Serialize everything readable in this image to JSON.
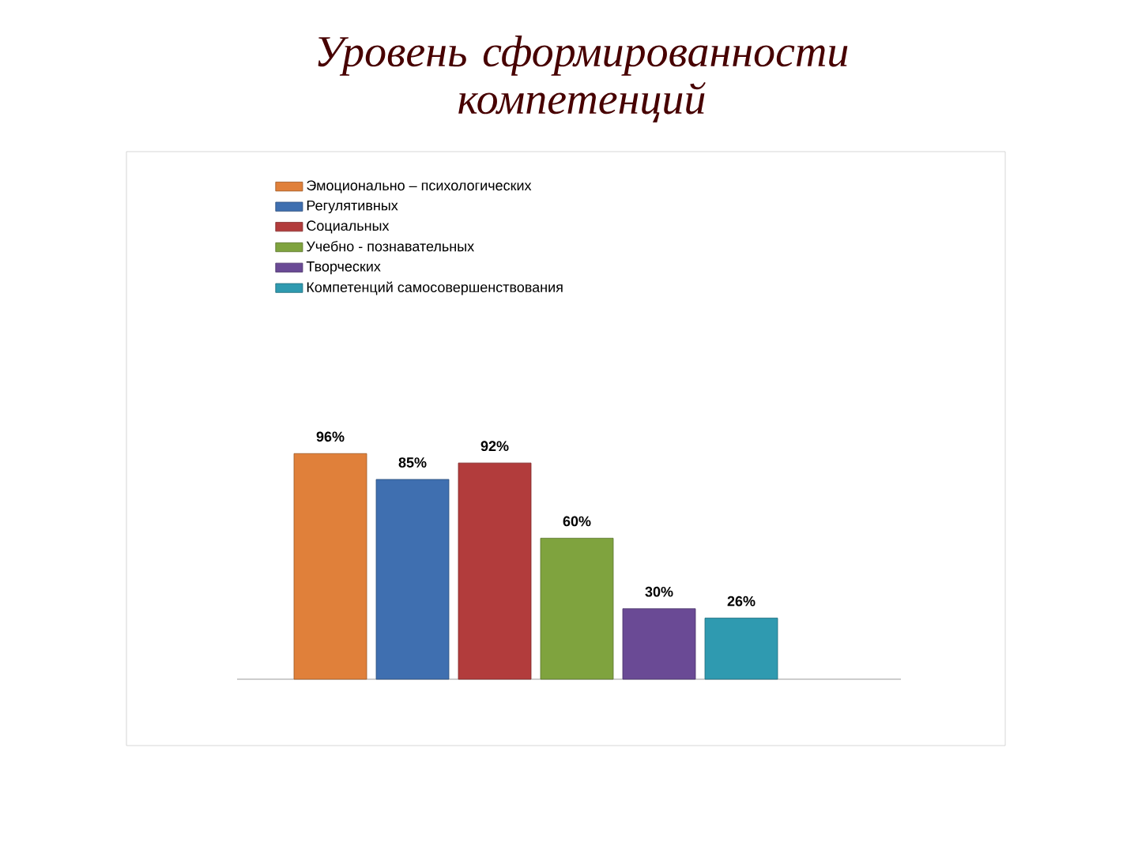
{
  "chart_data": {
    "type": "bar",
    "title": "Уровень сформированности компетенций",
    "categories": [
      null
    ],
    "series": [
      {
        "name": "Эмоционально – психологических",
        "color": "#e0803a",
        "values": [
          96
        ],
        "value_labels": [
          "96%"
        ]
      },
      {
        "name": "Регулятивных",
        "color": "#3f6fb0",
        "values": [
          85
        ],
        "value_labels": [
          "85%"
        ]
      },
      {
        "name": "Социальных",
        "color": "#b23c3c",
        "values": [
          92
        ],
        "value_labels": [
          "92%"
        ]
      },
      {
        "name": "Учебно - познавательных",
        "color": "#7fa33e",
        "values": [
          60
        ],
        "value_labels": [
          "60%"
        ]
      },
      {
        "name": "Творческих",
        "color": "#6a4a95",
        "values": [
          30
        ],
        "value_labels": [
          "30%"
        ]
      },
      {
        "name": "Компетенций самосовершенствования",
        "color": "#2f9ab0",
        "values": [
          26
        ],
        "value_labels": [
          "26%"
        ]
      }
    ],
    "legend": "top left"
  }
}
